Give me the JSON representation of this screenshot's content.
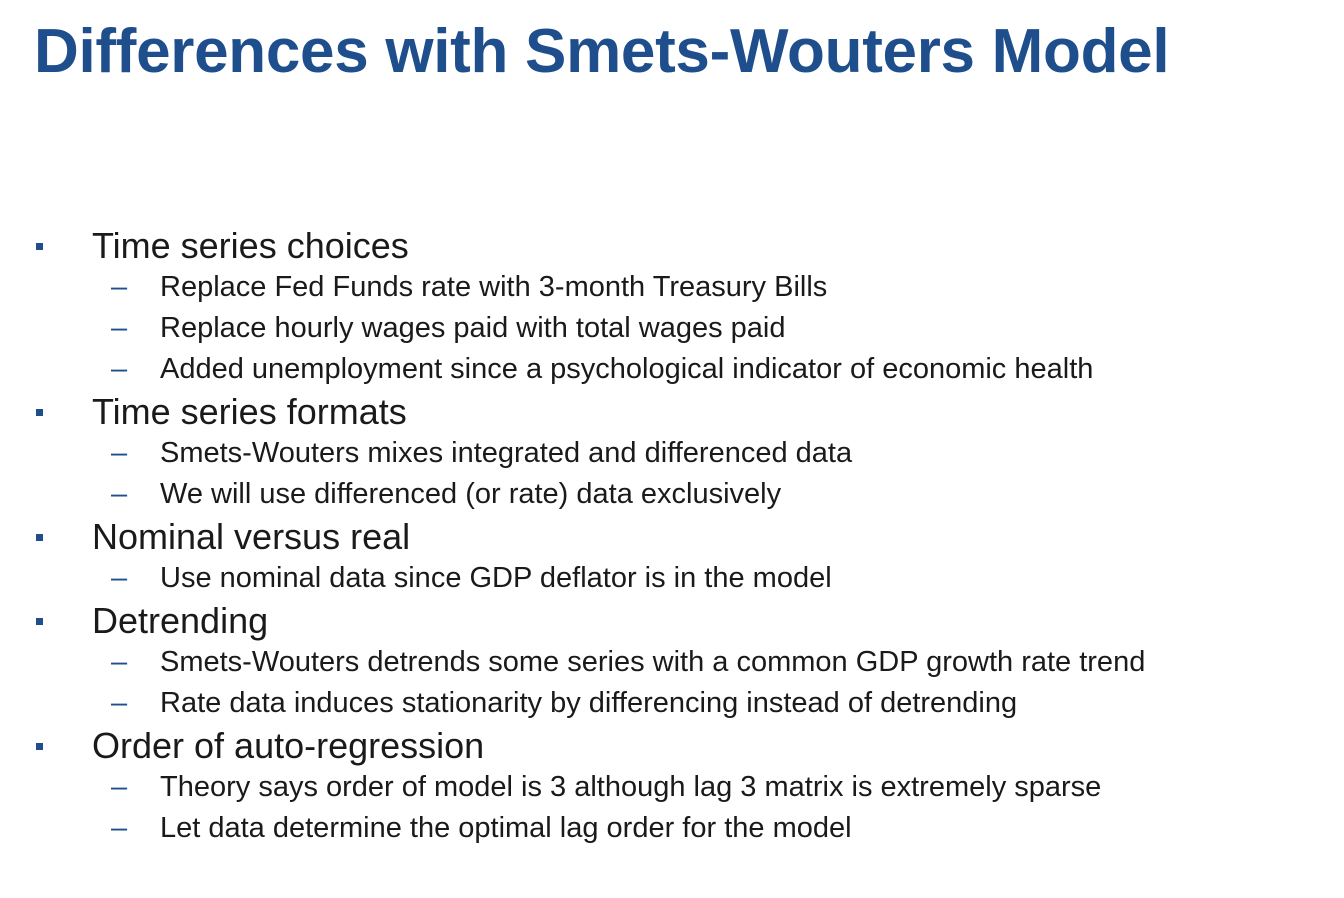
{
  "slide": {
    "title": "Differences with Smets-Wouters Model",
    "colors": {
      "title": "#1f4e8c",
      "bullet": "#1f4e8c",
      "text": "#1a1a1a",
      "background": "#ffffff"
    },
    "bullet_symbol": "▪",
    "dash_symbol": "–",
    "items": [
      {
        "heading": "Time series choices",
        "subitems": [
          "Replace Fed Funds rate with 3-month Treasury Bills",
          "Replace hourly wages paid with total wages paid",
          "Added unemployment since a psychological indicator of economic health"
        ]
      },
      {
        "heading": "Time series formats",
        "subitems": [
          "Smets-Wouters mixes integrated and differenced data",
          "We will use differenced (or rate) data exclusively"
        ]
      },
      {
        "heading": "Nominal versus real",
        "subitems": [
          "Use nominal data since GDP deflator is in the model"
        ]
      },
      {
        "heading": "Detrending",
        "subitems": [
          "Smets-Wouters detrends some series with a common GDP growth rate trend",
          "Rate data induces stationarity by differencing  instead of detrending"
        ]
      },
      {
        "heading": "Order of auto-regression",
        "subitems": [
          "Theory says order of model is 3 although lag 3 matrix is extremely sparse",
          "Let data determine the optimal lag order for the model"
        ]
      }
    ]
  }
}
